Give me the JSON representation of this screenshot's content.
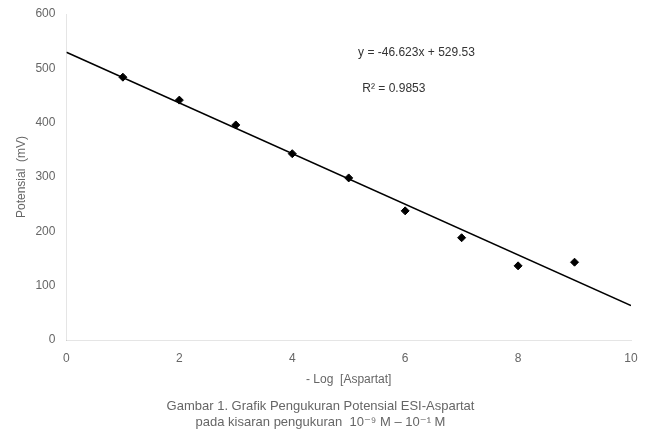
{
  "chart_data": {
    "type": "scatter",
    "title": [
      "Gambar 1. Grafik Pengukuran Potensial ESI-Aspartat",
      "pada kisaran pengukuran  10⁻⁹ M – 10⁻¹ M"
    ],
    "x_label": "- Log  [Aspartat]",
    "y_label": "Potensial  (mV)",
    "series": [
      {
        "type": "scatter",
        "marker": "diamond",
        "color": "black",
        "x": [
          1,
          2,
          3,
          4,
          5,
          6,
          7,
          8,
          9
        ],
        "values": [
          483.7,
          441.5,
          395.8,
          342.9,
          298.3,
          237.7,
          188.2,
          136.5,
          143.2
        ]
      },
      {
        "type": "line",
        "line_style": "solid",
        "color": "black",
        "x": [
          0,
          10
        ],
        "values": [
          529.53,
          63.3
        ]
      }
    ],
    "annotations": [
      "y = -46.623x + 529.53",
      "R² = 0.9853"
    ],
    "xlim": [
      0,
      10
    ],
    "ylim": [
      0,
      600
    ],
    "xticks": [
      0,
      2,
      4,
      6,
      8,
      10
    ],
    "yticks": [
      0,
      100,
      200,
      300,
      400,
      500,
      600
    ],
    "grid": false
  }
}
